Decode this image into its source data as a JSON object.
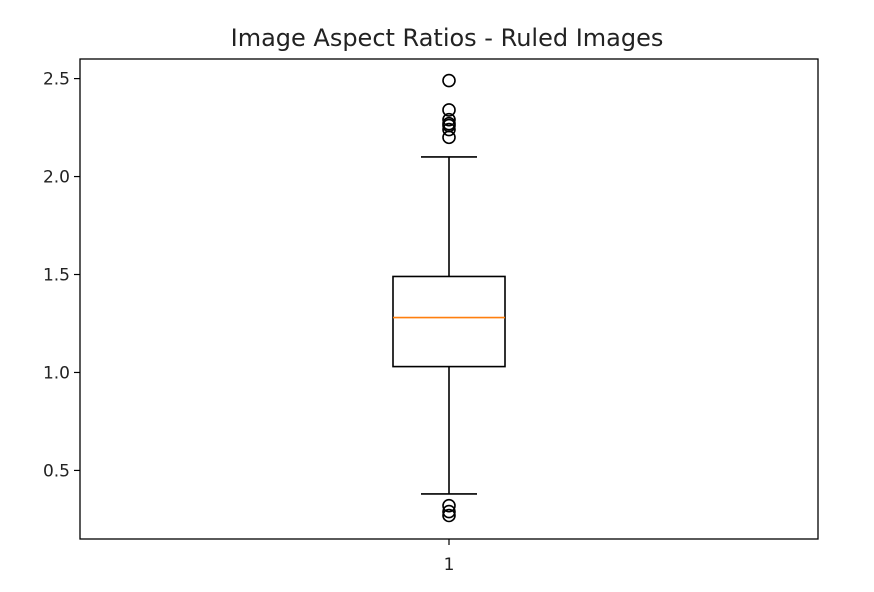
{
  "chart_data": {
    "type": "box",
    "title": "Image Aspect Ratios - Ruled Images",
    "xlabel": "",
    "ylabel": "",
    "categories": [
      "1"
    ],
    "ylim": [
      0.15,
      2.6
    ],
    "yticks": [
      0.5,
      1.0,
      1.5,
      2.0,
      2.5
    ],
    "ytick_labels": [
      "0.5",
      "1.0",
      "1.5",
      "2.0",
      "2.5"
    ],
    "grid": false,
    "boxes": [
      {
        "category": "1",
        "whisker_low": 0.38,
        "q1": 1.03,
        "median": 1.28,
        "q3": 1.49,
        "whisker_high": 2.1,
        "outliers": [
          2.49,
          2.34,
          2.29,
          2.27,
          2.26,
          2.24,
          2.2,
          0.32,
          0.29,
          0.27
        ]
      }
    ],
    "colors": {
      "box": "#000000",
      "median": "#ff7f0e",
      "outlier": "#000000"
    }
  }
}
